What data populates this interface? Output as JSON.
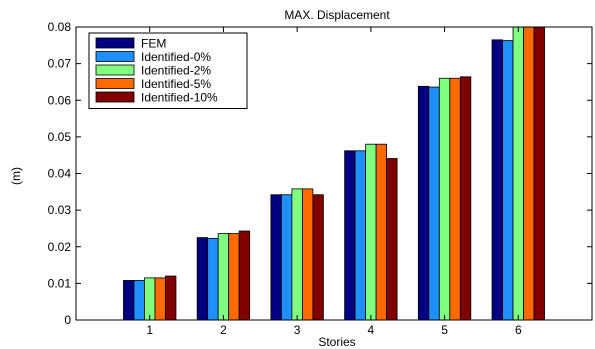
{
  "chart_data": {
    "type": "bar",
    "title": "MAX. Displacement",
    "xlabel": "Stories",
    "ylabel": "(m)",
    "categories": [
      "1",
      "2",
      "3",
      "4",
      "5",
      "6"
    ],
    "ylim": [
      0,
      0.08
    ],
    "yticks": [
      "0",
      "0.01",
      "0.02",
      "0.03",
      "0.04",
      "0.05",
      "0.06",
      "0.07",
      "0.08"
    ],
    "ytick_values": [
      0,
      0.01,
      0.02,
      0.03,
      0.04,
      0.05,
      0.06,
      0.07,
      0.08
    ],
    "grid": false,
    "legend_position": "top-left",
    "series": [
      {
        "name": "FEM",
        "color": "#000080",
        "values": [
          0.0108,
          0.0225,
          0.0342,
          0.0462,
          0.0638,
          0.0765
        ]
      },
      {
        "name": "Identified-0%",
        "color": "#1e90ff",
        "values": [
          0.0108,
          0.0223,
          0.0342,
          0.0462,
          0.0636,
          0.0763
        ]
      },
      {
        "name": "Identified-2%",
        "color": "#80ff80",
        "values": [
          0.0115,
          0.0236,
          0.0358,
          0.048,
          0.066,
          0.08
        ]
      },
      {
        "name": "Identified-5%",
        "color": "#ff6a00",
        "values": [
          0.0115,
          0.0236,
          0.0358,
          0.048,
          0.066,
          0.08
        ]
      },
      {
        "name": "Identified-10%",
        "color": "#800000",
        "values": [
          0.012,
          0.0243,
          0.0342,
          0.0441,
          0.0664,
          0.08
        ]
      }
    ]
  }
}
